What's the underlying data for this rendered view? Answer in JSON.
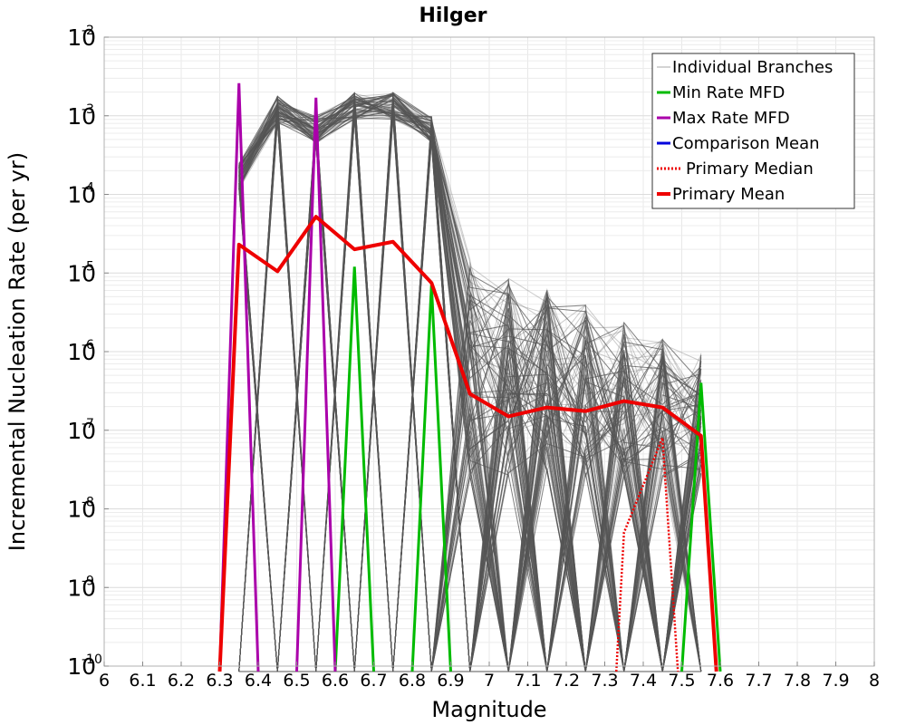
{
  "chart_data": {
    "type": "line",
    "title": "Hilger",
    "xlabel": "Magnitude",
    "ylabel": "Incremental Nucleation Rate (per yr)",
    "xscale": "linear",
    "yscale": "log",
    "xlim": [
      6,
      8
    ],
    "ylim": [
      1e-10,
      0.01
    ],
    "x_ticks": [
      "6",
      "6.1",
      "6.2",
      "6.3",
      "6.4",
      "6.5",
      "6.6",
      "6.7",
      "6.8",
      "6.9",
      "7",
      "7.1",
      "7.2",
      "7.3",
      "7.4",
      "7.5",
      "7.6",
      "7.7",
      "7.8",
      "7.9",
      "8"
    ],
    "y_ticks": [
      {
        "base": "10",
        "exp": "-10"
      },
      {
        "base": "10",
        "exp": "-9"
      },
      {
        "base": "10",
        "exp": "-8"
      },
      {
        "base": "10",
        "exp": "-7"
      },
      {
        "base": "10",
        "exp": "-6"
      },
      {
        "base": "10",
        "exp": "-5"
      },
      {
        "base": "10",
        "exp": "-4"
      },
      {
        "base": "10",
        "exp": "-3"
      },
      {
        "base": "10",
        "exp": "-2"
      }
    ],
    "grid": true,
    "legend_position": "top-right",
    "series": [
      {
        "name": "Individual Branches",
        "color": "#555555",
        "style": "thin",
        "x": [
          6.35,
          6.45,
          6.55,
          6.65,
          6.75,
          6.85,
          6.95,
          7.05,
          7.15,
          7.25,
          7.35,
          7.45,
          7.55
        ]
      },
      {
        "name": "Min Rate MFD",
        "color": "#00bb00",
        "style": "solid",
        "x": [
          6.65,
          6.85,
          7.55
        ],
        "values": [
          1.2e-05,
          7e-06,
          4e-07
        ]
      },
      {
        "name": "Max Rate MFD",
        "color": "#aa00aa",
        "style": "solid",
        "x": [
          6.35,
          6.55
        ],
        "values": [
          0.0026,
          0.0017
        ]
      },
      {
        "name": "Comparison Mean",
        "color": "#0000dd",
        "style": "solid",
        "x": [],
        "values": []
      },
      {
        "name": "Primary Median",
        "color": "#ee0000",
        "style": "dotted",
        "x": [
          7.35,
          7.45
        ],
        "values": [
          5e-09,
          8e-08
        ]
      },
      {
        "name": "Primary Mean",
        "color": "#ee0000",
        "style": "thick",
        "x": [
          6.35,
          6.45,
          6.55,
          6.65,
          6.75,
          6.85,
          6.95,
          7.05,
          7.15,
          7.25,
          7.35,
          7.45,
          7.55
        ],
        "values": [
          2.3e-05,
          1.05e-05,
          5.2e-05,
          2e-05,
          2.5e-05,
          7.5e-06,
          2.9e-07,
          1.5e-07,
          1.95e-07,
          1.75e-07,
          2.35e-07,
          1.95e-07,
          8.5e-08
        ]
      }
    ]
  }
}
